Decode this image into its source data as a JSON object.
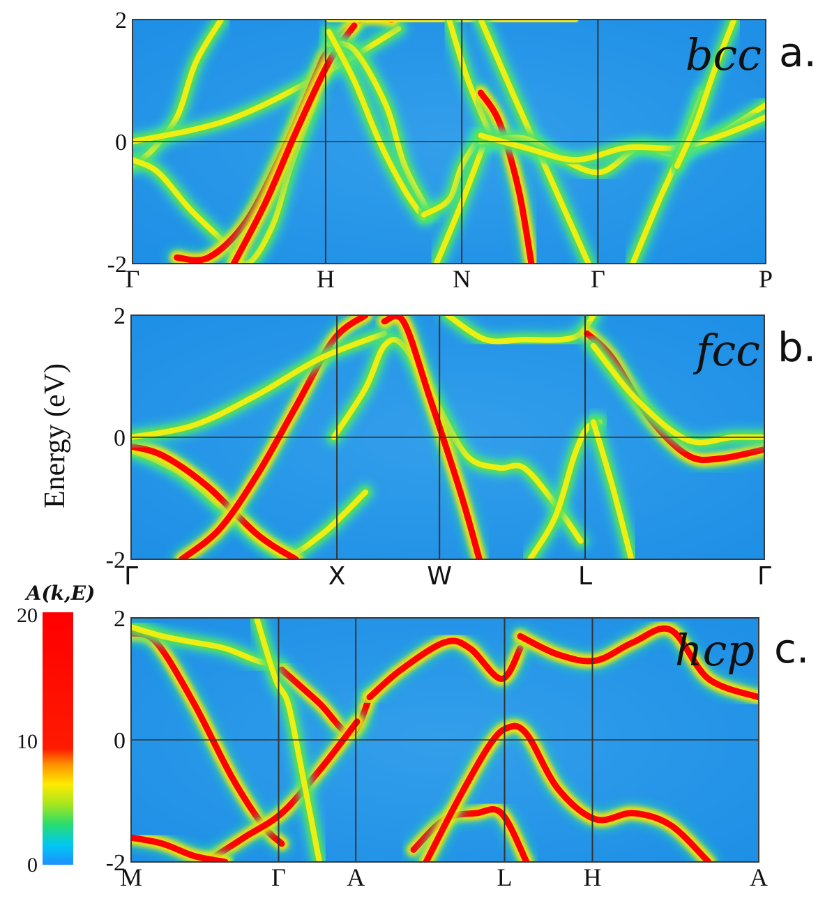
{
  "chart_data": [
    {
      "type": "heatmap",
      "panel": "a.",
      "structure": "bcc",
      "ylim": [
        -2,
        2
      ],
      "yticks": [
        "2",
        "0",
        "-2"
      ],
      "kpoints": [
        "Γ",
        "H",
        "N",
        "Γ",
        "P"
      ],
      "ylabel": "",
      "bands": [
        {
          "intensity": "medium",
          "x": [
            0.0,
            0.03,
            0.07,
            0.1,
            0.14
          ],
          "y": [
            -0.4,
            -0.15,
            0.4,
            1.3,
            2.0
          ]
        },
        {
          "intensity": "medium",
          "x": [
            0.0,
            0.04,
            0.09,
            0.14,
            0.18,
            0.22,
            0.25,
            0.29
          ],
          "y": [
            -0.3,
            -0.5,
            -1.1,
            -1.6,
            -2.0,
            -1.4,
            -0.4,
            0.7
          ]
        },
        {
          "intensity": "medium",
          "x": [
            0.0,
            0.15,
            0.3,
            0.42
          ],
          "y": [
            0.0,
            0.35,
            1.1,
            1.85
          ]
        },
        {
          "intensity": "high",
          "x": [
            0.07,
            0.12,
            0.18,
            0.24,
            0.29,
            0.31,
            0.36,
            0.41
          ],
          "y": [
            -1.9,
            -1.9,
            -1.3,
            -0.1,
            1.1,
            1.5,
            2.0,
            2.0
          ]
        },
        {
          "intensity": "high",
          "x": [
            0.16,
            0.21,
            0.26,
            0.31,
            0.35
          ],
          "y": [
            -2.0,
            -1.0,
            0.2,
            1.3,
            1.9
          ]
        },
        {
          "intensity": "medium",
          "x": [
            0.31,
            0.35,
            0.4,
            0.43,
            0.47
          ],
          "y": [
            1.6,
            1.5,
            0.6,
            -0.4,
            -1.2
          ]
        },
        {
          "intensity": "medium",
          "x": [
            0.31,
            0.35,
            0.39,
            0.43,
            0.46
          ],
          "y": [
            1.8,
            1.0,
            0.0,
            -0.8,
            -1.25
          ]
        },
        {
          "intensity": "medium",
          "x": [
            0.46,
            0.5,
            0.52,
            0.55
          ],
          "y": [
            -1.2,
            -0.95,
            -0.4,
            0.1
          ]
        },
        {
          "intensity": "medium",
          "x": [
            0.31,
            0.42,
            0.55,
            0.7
          ],
          "y": [
            2.0,
            2.0,
            2.0,
            2.0
          ]
        },
        {
          "intensity": "medium",
          "x": [
            0.48,
            0.52,
            0.56
          ],
          "y": [
            -2.0,
            -1.0,
            0.1
          ]
        },
        {
          "intensity": "medium",
          "x": [
            0.5,
            0.53,
            0.57
          ],
          "y": [
            2.0,
            1.0,
            0.0
          ]
        },
        {
          "intensity": "high",
          "x": [
            0.55,
            0.58,
            0.61,
            0.63
          ],
          "y": [
            0.8,
            0.3,
            -0.8,
            -2.0
          ]
        },
        {
          "intensity": "medium",
          "x": [
            0.55,
            0.6,
            0.66,
            0.72
          ],
          "y": [
            2.0,
            0.8,
            -0.6,
            -2.0
          ]
        },
        {
          "intensity": "medium",
          "x": [
            0.55,
            0.62,
            0.68,
            0.74,
            0.8,
            0.86,
            0.93,
            1.0
          ],
          "y": [
            0.0,
            0.05,
            -0.3,
            -0.5,
            -0.1,
            -0.2,
            0.15,
            0.6
          ]
        },
        {
          "intensity": "medium",
          "x": [
            0.55,
            0.62,
            0.7,
            0.78,
            0.86,
            0.93,
            1.0
          ],
          "y": [
            0.1,
            -0.1,
            -0.3,
            -0.1,
            -0.1,
            0.1,
            0.4
          ]
        },
        {
          "intensity": "medium",
          "x": [
            0.79,
            0.83,
            0.86,
            0.9
          ],
          "y": [
            -2.0,
            -1.0,
            -0.3,
            0.8
          ]
        },
        {
          "intensity": "medium",
          "x": [
            0.86,
            0.89,
            0.92,
            0.95
          ],
          "y": [
            -0.4,
            0.3,
            1.2,
            2.0
          ]
        }
      ]
    },
    {
      "type": "heatmap",
      "panel": "b.",
      "structure": "fcc",
      "ylim": [
        -2,
        2
      ],
      "yticks": [
        "2",
        "0",
        "-2"
      ],
      "kpoints": [
        "Γ",
        "X",
        "W",
        "L",
        "Γ"
      ],
      "ylabel": "Energy (eV)",
      "bands": [
        {
          "intensity": "medium",
          "x": [
            0.0,
            0.08,
            0.16,
            0.24,
            0.3,
            0.37
          ],
          "y": [
            -0.2,
            -0.6,
            -1.3,
            -1.9,
            -1.6,
            -0.9
          ]
        },
        {
          "intensity": "high",
          "x": [
            0.0,
            0.05,
            0.12,
            0.2,
            0.26
          ],
          "y": [
            -0.15,
            -0.3,
            -0.8,
            -1.6,
            -2.0
          ]
        },
        {
          "intensity": "high",
          "x": [
            0.08,
            0.14,
            0.2,
            0.26,
            0.32,
            0.37
          ],
          "y": [
            -2.0,
            -1.5,
            -0.6,
            0.5,
            1.6,
            2.0
          ]
        },
        {
          "intensity": "medium",
          "x": [
            0.0,
            0.1,
            0.2,
            0.3,
            0.4
          ],
          "y": [
            0.0,
            0.2,
            0.7,
            1.3,
            1.7
          ]
        },
        {
          "intensity": "medium",
          "x": [
            0.32,
            0.37,
            0.4,
            0.43,
            0.48,
            0.53,
            0.58,
            0.62,
            0.67,
            0.71
          ],
          "y": [
            0.0,
            0.8,
            1.5,
            1.5,
            0.6,
            -0.3,
            -0.5,
            -0.5,
            -1.1,
            -1.7
          ]
        },
        {
          "intensity": "high",
          "x": [
            0.4,
            0.43,
            0.47,
            0.52,
            0.55
          ],
          "y": [
            1.9,
            1.9,
            0.7,
            -0.9,
            -2.0
          ]
        },
        {
          "intensity": "medium",
          "x": [
            0.5,
            0.56,
            0.62,
            0.68,
            0.71,
            0.73
          ],
          "y": [
            2.0,
            1.6,
            1.6,
            1.6,
            1.7,
            2.0
          ]
        },
        {
          "intensity": "medium",
          "x": [
            0.63,
            0.67,
            0.7,
            0.72,
            0.74
          ],
          "y": [
            -2.0,
            -1.3,
            -0.3,
            0.15,
            0.25
          ]
        },
        {
          "intensity": "medium",
          "x": [
            0.73,
            0.76,
            0.79
          ],
          "y": [
            0.25,
            -0.8,
            -2.0
          ]
        },
        {
          "intensity": "high",
          "x": [
            0.72,
            0.76,
            0.82,
            0.88,
            0.93,
            1.0
          ],
          "y": [
            1.7,
            1.3,
            0.3,
            -0.3,
            -0.35,
            -0.2
          ]
        },
        {
          "intensity": "medium",
          "x": [
            0.73,
            0.8,
            0.88,
            0.95,
            1.0
          ],
          "y": [
            1.5,
            0.6,
            -0.05,
            0.0,
            0.0
          ]
        }
      ]
    },
    {
      "type": "heatmap",
      "panel": "c.",
      "structure": "hcp",
      "ylim": [
        -2,
        2
      ],
      "yticks": [
        "2",
        "0",
        "-2"
      ],
      "kpoints": [
        "M",
        "Γ",
        "A",
        "L",
        "H",
        "A"
      ],
      "ylabel": "",
      "colorbar": {
        "title": "A(k,E)",
        "ticks": [
          "20",
          "10",
          "0"
        ],
        "range": [
          0,
          20
        ]
      },
      "bands": [
        {
          "intensity": "high",
          "x": [
            0.0,
            0.04,
            0.1,
            0.16,
            0.21,
            0.24
          ],
          "y": [
            1.75,
            1.6,
            0.6,
            -0.6,
            -1.4,
            -1.7
          ]
        },
        {
          "intensity": "medium",
          "x": [
            0.0,
            0.05,
            0.1,
            0.15,
            0.2,
            0.24
          ],
          "y": [
            1.85,
            1.7,
            1.6,
            1.5,
            1.3,
            1.2
          ]
        },
        {
          "intensity": "high",
          "x": [
            0.24,
            0.3,
            0.35,
            0.38
          ],
          "y": [
            1.15,
            0.6,
            0.1,
            0.7
          ]
        },
        {
          "intensity": "high",
          "x": [
            0.38,
            0.43,
            0.5,
            0.54,
            0.59,
            0.62
          ],
          "y": [
            0.7,
            1.15,
            1.6,
            1.5,
            1.0,
            1.5
          ]
        },
        {
          "intensity": "high",
          "x": [
            0.62,
            0.68,
            0.74,
            0.8,
            0.86,
            0.92,
            1.0
          ],
          "y": [
            1.7,
            1.4,
            1.3,
            1.6,
            1.8,
            1.0,
            0.7
          ]
        },
        {
          "intensity": "high",
          "x": [
            0.12,
            0.18,
            0.24,
            0.3,
            0.36
          ],
          "y": [
            -2.0,
            -1.6,
            -1.2,
            -0.5,
            0.3
          ]
        },
        {
          "intensity": "medium",
          "x": [
            0.2,
            0.23,
            0.25,
            0.27,
            0.3
          ],
          "y": [
            2.0,
            1.0,
            0.6,
            -0.4,
            -2.0
          ]
        },
        {
          "intensity": "high",
          "x": [
            0.45,
            0.5,
            0.55,
            0.59,
            0.63
          ],
          "y": [
            -1.8,
            -1.3,
            -1.2,
            -1.2,
            -2.0
          ]
        },
        {
          "intensity": "high",
          "x": [
            0.47,
            0.52,
            0.57,
            0.6,
            0.63,
            0.68,
            0.74,
            0.8,
            0.86,
            0.92
          ],
          "y": [
            -2.0,
            -1.0,
            -0.1,
            0.2,
            0.1,
            -0.8,
            -1.3,
            -1.2,
            -1.4,
            -2.0
          ]
        },
        {
          "intensity": "high",
          "x": [
            0.0,
            0.05,
            0.1,
            0.15
          ],
          "y": [
            -1.6,
            -1.7,
            -1.9,
            -2.0
          ]
        }
      ]
    }
  ]
}
